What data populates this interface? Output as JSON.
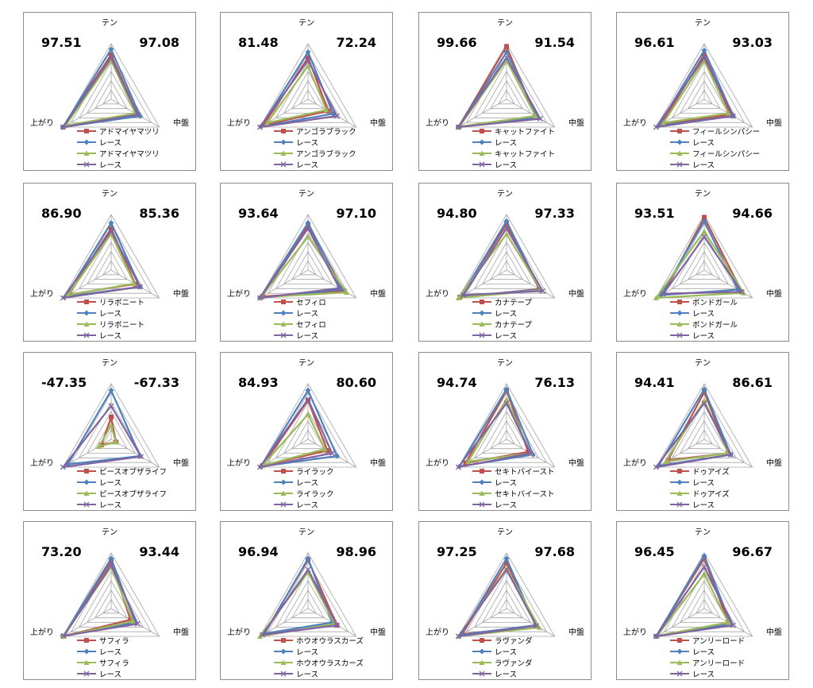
{
  "axes": {
    "top": "テン",
    "left": "上がり",
    "right": "中盤"
  },
  "colors": {
    "s1": "#c0504d",
    "s2": "#4f81bd",
    "s3": "#9bbb59",
    "s4": "#8064a2",
    "grid": "#a6a6a6"
  },
  "race_label": "レース",
  "panels": [
    {
      "name": "アドマイヤマツリ",
      "left_value": "97.51",
      "right_value": "97.08"
    },
    {
      "name": "アンゴラブラック",
      "left_value": "81.48",
      "right_value": "72.24"
    },
    {
      "name": "キャットファイト",
      "left_value": "99.66",
      "right_value": "91.54"
    },
    {
      "name": "フィールシンパシー",
      "left_value": "96.61",
      "right_value": "93.03"
    },
    {
      "name": "リラボニート",
      "left_value": "86.90",
      "right_value": "85.36"
    },
    {
      "name": "セフィロ",
      "left_value": "93.64",
      "right_value": "97.10"
    },
    {
      "name": "カナテープ",
      "left_value": "94.80",
      "right_value": "97.33"
    },
    {
      "name": "ボンドガール",
      "left_value": "93.51",
      "right_value": "94.66"
    },
    {
      "name": "ピースオブザライフ",
      "left_value": "-47.35",
      "right_value": "-67.33"
    },
    {
      "name": "ライラック",
      "left_value": "84.93",
      "right_value": "80.60"
    },
    {
      "name": "セキトバイースト",
      "left_value": "94.74",
      "right_value": "76.13"
    },
    {
      "name": "ドゥアイズ",
      "left_value": "94.41",
      "right_value": "86.61"
    },
    {
      "name": "サフィラ",
      "left_value": "73.20",
      "right_value": "93.44"
    },
    {
      "name": "ホウオウラスカーズ",
      "left_value": "96.94",
      "right_value": "98.96"
    },
    {
      "name": "ラヴァンダ",
      "left_value": "97.25",
      "right_value": "97.68"
    },
    {
      "name": "アンリーロード",
      "left_value": "96.45",
      "right_value": "96.67"
    }
  ],
  "chart_data": [
    {
      "type": "radar",
      "axes": [
        "テン",
        "中盤",
        "上がり"
      ],
      "rmax": 1,
      "rings": 6,
      "series": [
        {
          "name": "アドマイヤマツリ",
          "values": [
            0.8,
            0.55,
            1.0
          ]
        },
        {
          "name": "レース",
          "values": [
            0.9,
            0.6,
            1.0
          ]
        },
        {
          "name": "アドマイヤマツリ",
          "values": [
            0.7,
            0.5,
            0.95
          ]
        },
        {
          "name": "レース",
          "values": [
            0.75,
            0.55,
            1.0
          ]
        }
      ]
    },
    {
      "type": "radar",
      "axes": [
        "テン",
        "中盤",
        "上がり"
      ],
      "rmax": 1,
      "rings": 6,
      "series": [
        {
          "name": "アンゴラブラック",
          "values": [
            0.75,
            0.42,
            0.92
          ]
        },
        {
          "name": "レース",
          "values": [
            0.85,
            0.52,
            0.98
          ]
        },
        {
          "name": "アンゴラブラック",
          "values": [
            0.6,
            0.38,
            0.85
          ]
        },
        {
          "name": "レース",
          "values": [
            0.7,
            0.6,
            1.0
          ]
        }
      ]
    },
    {
      "type": "radar",
      "axes": [
        "テン",
        "中盤",
        "上がり"
      ],
      "rmax": 1,
      "rings": 6,
      "series": [
        {
          "name": "キャットファイト",
          "values": [
            0.95,
            0.6,
            1.0
          ]
        },
        {
          "name": "レース",
          "values": [
            0.85,
            0.65,
            1.0
          ]
        },
        {
          "name": "キャットファイト",
          "values": [
            0.7,
            0.6,
            0.98
          ]
        },
        {
          "name": "レース",
          "values": [
            0.75,
            0.7,
            1.0
          ]
        }
      ]
    },
    {
      "type": "radar",
      "axes": [
        "テン",
        "中盤",
        "上がり"
      ],
      "rmax": 1,
      "rings": 6,
      "series": [
        {
          "name": "フィールシンパシー",
          "values": [
            0.8,
            0.55,
            0.9
          ]
        },
        {
          "name": "レース",
          "values": [
            0.88,
            0.6,
            0.95
          ]
        },
        {
          "name": "フィールシンパシー",
          "values": [
            0.7,
            0.5,
            0.85
          ]
        },
        {
          "name": "レース",
          "values": [
            0.75,
            0.6,
            1.0
          ]
        }
      ]
    },
    {
      "type": "radar",
      "axes": [
        "テン",
        "中盤",
        "上がり"
      ],
      "rmax": 1,
      "rings": 6,
      "series": [
        {
          "name": "リラボニート",
          "values": [
            0.75,
            0.5,
            0.88
          ]
        },
        {
          "name": "レース",
          "values": [
            0.85,
            0.6,
            0.95
          ]
        },
        {
          "name": "リラボニート",
          "values": [
            0.65,
            0.48,
            0.9
          ]
        },
        {
          "name": "レース",
          "values": [
            0.7,
            0.6,
            1.0
          ]
        }
      ]
    },
    {
      "type": "radar",
      "axes": [
        "テン",
        "中盤",
        "上がり"
      ],
      "rmax": 1,
      "rings": 6,
      "series": [
        {
          "name": "セフィロ",
          "values": [
            0.8,
            0.75,
            0.95
          ]
        },
        {
          "name": "レース",
          "values": [
            0.85,
            0.7,
            1.0
          ]
        },
        {
          "name": "セフィロ",
          "values": [
            0.6,
            0.8,
            0.98
          ]
        },
        {
          "name": "レース",
          "values": [
            0.75,
            0.65,
            1.0
          ]
        }
      ]
    },
    {
      "type": "radar",
      "axes": [
        "テン",
        "中盤",
        "上がり"
      ],
      "rmax": 1,
      "rings": 6,
      "series": [
        {
          "name": "カナテープ",
          "values": [
            0.82,
            0.68,
            0.97
          ]
        },
        {
          "name": "レース",
          "values": [
            0.88,
            0.7,
            0.95
          ]
        },
        {
          "name": "カナテープ",
          "values": [
            0.65,
            0.72,
            1.0
          ]
        },
        {
          "name": "レース",
          "values": [
            0.75,
            0.75,
            0.9
          ]
        }
      ]
    },
    {
      "type": "radar",
      "axes": [
        "テン",
        "中盤",
        "上がり"
      ],
      "rmax": 1,
      "rings": 6,
      "series": [
        {
          "name": "ボンドガール",
          "values": [
            0.95,
            0.78,
            0.85
          ]
        },
        {
          "name": "レース",
          "values": [
            0.88,
            0.7,
            0.9
          ]
        },
        {
          "name": "ボンドガール",
          "values": [
            0.7,
            0.82,
            1.0
          ]
        },
        {
          "name": "レース",
          "values": [
            0.6,
            0.78,
            0.85
          ]
        }
      ]
    },
    {
      "type": "radar",
      "axes": [
        "テン",
        "中盤",
        "上がり"
      ],
      "rmax": 1,
      "rings": 6,
      "series": [
        {
          "name": "ピースオブザライフ",
          "values": [
            0.4,
            0.1,
            0.2
          ]
        },
        {
          "name": "レース",
          "values": [
            0.88,
            0.6,
            0.9
          ]
        },
        {
          "name": "ピースオブザライフ",
          "values": [
            0.25,
            0.1,
            0.25
          ]
        },
        {
          "name": "レース",
          "values": [
            0.6,
            0.62,
            1.0
          ]
        }
      ]
    },
    {
      "type": "radar",
      "axes": [
        "テン",
        "中盤",
        "上がり"
      ],
      "rmax": 1,
      "rings": 6,
      "series": [
        {
          "name": "ライラック",
          "values": [
            0.7,
            0.4,
            0.95
          ]
        },
        {
          "name": "レース",
          "values": [
            0.88,
            0.6,
            0.98
          ]
        },
        {
          "name": "ライラック",
          "values": [
            0.45,
            0.35,
            0.95
          ]
        },
        {
          "name": "レース",
          "values": [
            0.72,
            0.5,
            1.0
          ]
        }
      ]
    },
    {
      "type": "radar",
      "axes": [
        "テン",
        "中盤",
        "上がり"
      ],
      "rmax": 1,
      "rings": 6,
      "series": [
        {
          "name": "セキトバイースト",
          "values": [
            0.88,
            0.45,
            0.85
          ]
        },
        {
          "name": "レース",
          "values": [
            0.9,
            0.55,
            0.98
          ]
        },
        {
          "name": "セキトバイースト",
          "values": [
            0.72,
            0.5,
            0.8
          ]
        },
        {
          "name": "レース",
          "values": [
            0.65,
            0.5,
            1.0
          ]
        }
      ]
    },
    {
      "type": "radar",
      "axes": [
        "テン",
        "中盤",
        "上がり"
      ],
      "rmax": 1,
      "rings": 6,
      "series": [
        {
          "name": "ドゥアイズ",
          "values": [
            0.85,
            0.5,
            0.75
          ]
        },
        {
          "name": "レース",
          "values": [
            0.9,
            0.55,
            0.95
          ]
        },
        {
          "name": "ドゥアイズ",
          "values": [
            0.7,
            0.5,
            0.8
          ]
        },
        {
          "name": "レース",
          "values": [
            0.65,
            0.55,
            1.0
          ]
        }
      ]
    },
    {
      "type": "radar",
      "axes": [
        "テン",
        "中盤",
        "上がり"
      ],
      "rmax": 1,
      "rings": 6,
      "series": [
        {
          "name": "サフィラ",
          "values": [
            0.85,
            0.4,
            1.0
          ]
        },
        {
          "name": "レース",
          "values": [
            0.9,
            0.5,
            1.0
          ]
        },
        {
          "name": "サフィラ",
          "values": [
            0.75,
            0.45,
            1.0
          ]
        },
        {
          "name": "レース",
          "values": [
            0.78,
            0.55,
            0.98
          ]
        }
      ]
    },
    {
      "type": "radar",
      "axes": [
        "テン",
        "中盤",
        "上がり"
      ],
      "rmax": 1,
      "rings": 6,
      "series": [
        {
          "name": "ホウオウラスカーズ",
          "values": [
            0.88,
            0.6,
            0.92
          ]
        },
        {
          "name": "レース",
          "values": [
            0.9,
            0.5,
            0.9
          ]
        },
        {
          "name": "ホウオウラスカーズ",
          "values": [
            0.65,
            0.55,
            1.0
          ]
        },
        {
          "name": "レース",
          "values": [
            0.7,
            0.6,
            0.95
          ]
        }
      ]
    },
    {
      "type": "radar",
      "axes": [
        "テン",
        "中盤",
        "上がり"
      ],
      "rmax": 1,
      "rings": 6,
      "series": [
        {
          "name": "ラヴァンダ",
          "values": [
            0.82,
            0.62,
            0.92
          ]
        },
        {
          "name": "レース",
          "values": [
            0.9,
            0.6,
            0.95
          ]
        },
        {
          "name": "ラヴァンダ",
          "values": [
            0.72,
            0.68,
            1.0
          ]
        },
        {
          "name": "レース",
          "values": [
            0.7,
            0.62,
            1.0
          ]
        }
      ]
    },
    {
      "type": "radar",
      "axes": [
        "テン",
        "中盤",
        "上がり"
      ],
      "rmax": 1,
      "rings": 6,
      "series": [
        {
          "name": "アンリーロード",
          "values": [
            0.9,
            0.5,
            1.0
          ]
        },
        {
          "name": "レース",
          "values": [
            0.95,
            0.55,
            1.0
          ]
        },
        {
          "name": "アンリーロード",
          "values": [
            0.62,
            0.5,
            0.98
          ]
        },
        {
          "name": "レース",
          "values": [
            0.75,
            0.6,
            1.0
          ]
        }
      ]
    }
  ]
}
